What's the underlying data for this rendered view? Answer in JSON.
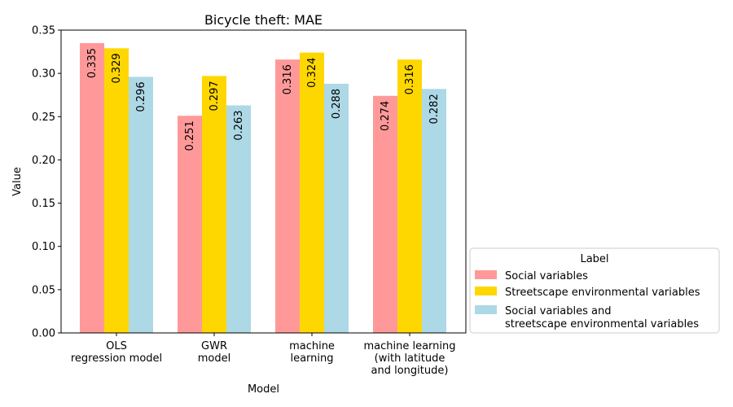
{
  "chart_data": {
    "type": "bar",
    "title": "Bicycle theft: MAE",
    "xlabel": "Model",
    "ylabel": "Value",
    "ylim": [
      0,
      0.35
    ],
    "yticks": [
      "0.00",
      "0.05",
      "0.10",
      "0.15",
      "0.20",
      "0.25",
      "0.30",
      "0.35"
    ],
    "categories": [
      [
        "OLS",
        "regression model"
      ],
      [
        "GWR",
        "model"
      ],
      [
        "machine",
        "learning"
      ],
      [
        "machine learning",
        "(with latitude",
        "and longitude)"
      ]
    ],
    "series": [
      {
        "name": [
          "Social variables"
        ],
        "color": "#ff9999",
        "values": [
          0.335,
          0.251,
          0.316,
          0.274
        ]
      },
      {
        "name": [
          "Streetscape environmental variables"
        ],
        "color": "#ffd700",
        "values": [
          0.329,
          0.297,
          0.324,
          0.316
        ]
      },
      {
        "name": [
          "Social variables and",
          "streetscape environmental variables"
        ],
        "color": "#add8e6",
        "values": [
          0.296,
          0.263,
          0.288,
          0.282
        ]
      }
    ],
    "data_labels": [
      [
        "0.335",
        "0.251",
        "0.316",
        "0.274"
      ],
      [
        "0.329",
        "0.297",
        "0.324",
        "0.316"
      ],
      [
        "0.296",
        "0.263",
        "0.288",
        "0.282"
      ]
    ],
    "legend": {
      "title": "Label",
      "placement": "outside-right-bottom"
    },
    "grid": false
  }
}
